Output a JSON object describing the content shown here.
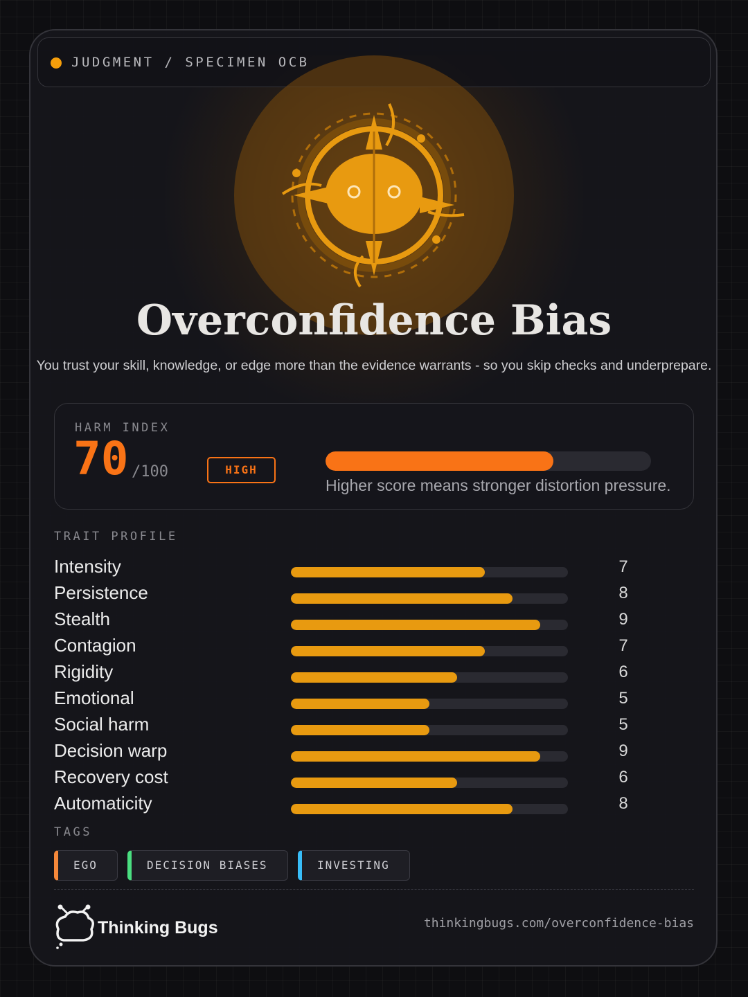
{
  "header": {
    "breadcrumb": "JUDGMENT / SPECIMEN OCB"
  },
  "title": "Overconfidence Bias",
  "subtitle": "You trust your skill, knowledge, or edge more than the evidence warrants - so you skip checks and underprepare.",
  "harm_index": {
    "label": "HARM INDEX",
    "score": 70,
    "max": {
      "value": 100,
      "label": "/100"
    },
    "level": "HIGH",
    "caption": "Higher score means stronger distortion pressure.",
    "color": "#f97316"
  },
  "traits": {
    "label": "TRAIT PROFILE",
    "xlim": [
      0,
      10
    ],
    "color": "#e89a10",
    "items": [
      {
        "name": "Intensity",
        "value": 7
      },
      {
        "name": "Persistence",
        "value": 8
      },
      {
        "name": "Stealth",
        "value": 9
      },
      {
        "name": "Contagion",
        "value": 7
      },
      {
        "name": "Rigidity",
        "value": 6
      },
      {
        "name": "Emotional",
        "value": 5
      },
      {
        "name": "Social harm",
        "value": 5
      },
      {
        "name": "Decision warp",
        "value": 9
      },
      {
        "name": "Recovery cost",
        "value": 6
      },
      {
        "name": "Automaticity",
        "value": 8
      }
    ]
  },
  "tags": {
    "label": "TAGS",
    "items": [
      {
        "text": "EGO",
        "color": "#f5883a"
      },
      {
        "text": "DECISION BIASES",
        "color": "#4ade80"
      },
      {
        "text": "INVESTING",
        "color": "#38bdf8"
      }
    ]
  },
  "footer": {
    "brand": "Thinking Bugs",
    "url": "thinkingbugs.com/overconfidence-bias"
  }
}
